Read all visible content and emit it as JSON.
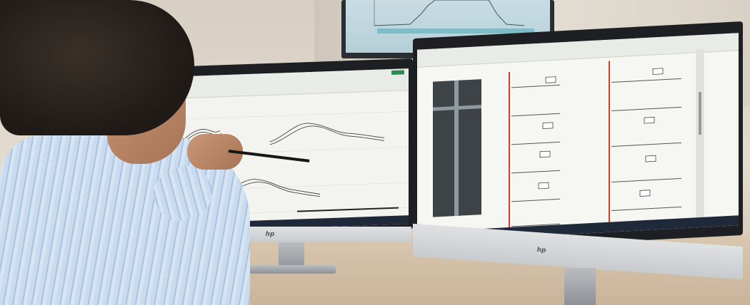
{
  "scene": {
    "description_tags": [
      "office",
      "person",
      "two-monitors",
      "wall-tv"
    ],
    "colors": {
      "wall": "#ddd4c8",
      "desk": "#d2bea5",
      "shirt": "#bcd3ec",
      "monitor_bezel": "#1d1f22",
      "red_line": "#d23a2a",
      "taskbar": "#1e2a3a"
    }
  },
  "monitors": {
    "left": {
      "brand_logo": "hp",
      "app": "spreadsheet-chart"
    },
    "right": {
      "brand_logo": "hp",
      "app": "document-viewer"
    }
  }
}
